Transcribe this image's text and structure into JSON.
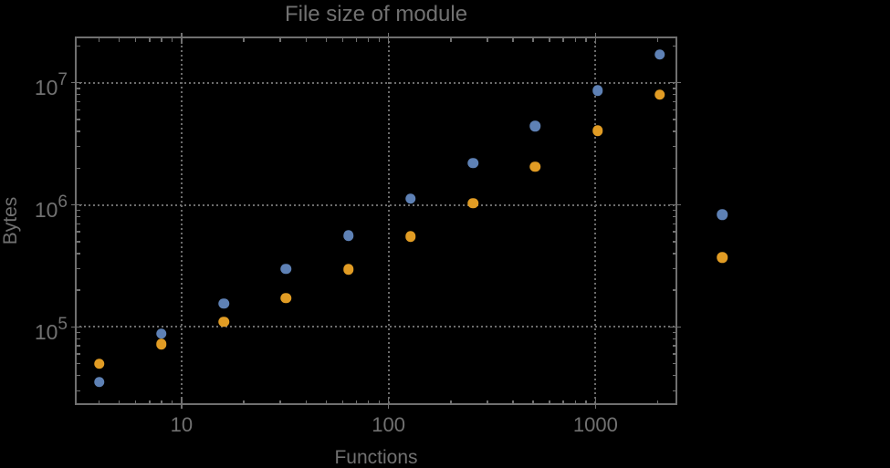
{
  "chart_data": {
    "type": "scatter",
    "title": "File size of module",
    "xlabel": "Functions",
    "ylabel": "Bytes",
    "x_scale": "log",
    "y_scale": "log",
    "xlim": [
      3.05,
      2485
    ],
    "ylim": [
      22900,
      23940000
    ],
    "grid": "dotted",
    "legend": "none",
    "x": [
      4,
      8,
      16,
      32,
      64,
      128,
      256,
      512,
      1024,
      2048,
      4096
    ],
    "series": [
      {
        "name": "series-blue",
        "color": "#5e81b5",
        "values": [
          35500,
          88000,
          155000,
          300000,
          560000,
          1120000,
          2200000,
          4400000,
          8600000,
          17000000,
          830000
        ]
      },
      {
        "name": "series-orange",
        "color": "#e19c24",
        "values": [
          50000,
          72000,
          110000,
          172000,
          295000,
          550000,
          1030000,
          2050000,
          4050000,
          8000000,
          370000
        ]
      }
    ],
    "x_ticks": {
      "major": [
        10,
        100,
        1000
      ],
      "labels": [
        "10",
        "100",
        "1000"
      ]
    },
    "y_ticks": {
      "major": [
        100000,
        1000000,
        10000000
      ],
      "labels": [
        {
          "base": "10",
          "exp": "5"
        },
        {
          "base": "10",
          "exp": "6"
        },
        {
          "base": "10",
          "exp": "7"
        }
      ]
    },
    "colors": {
      "background": "#000000",
      "frame": "#707070",
      "text": "#717171",
      "grid": "#6c6c6c"
    }
  }
}
